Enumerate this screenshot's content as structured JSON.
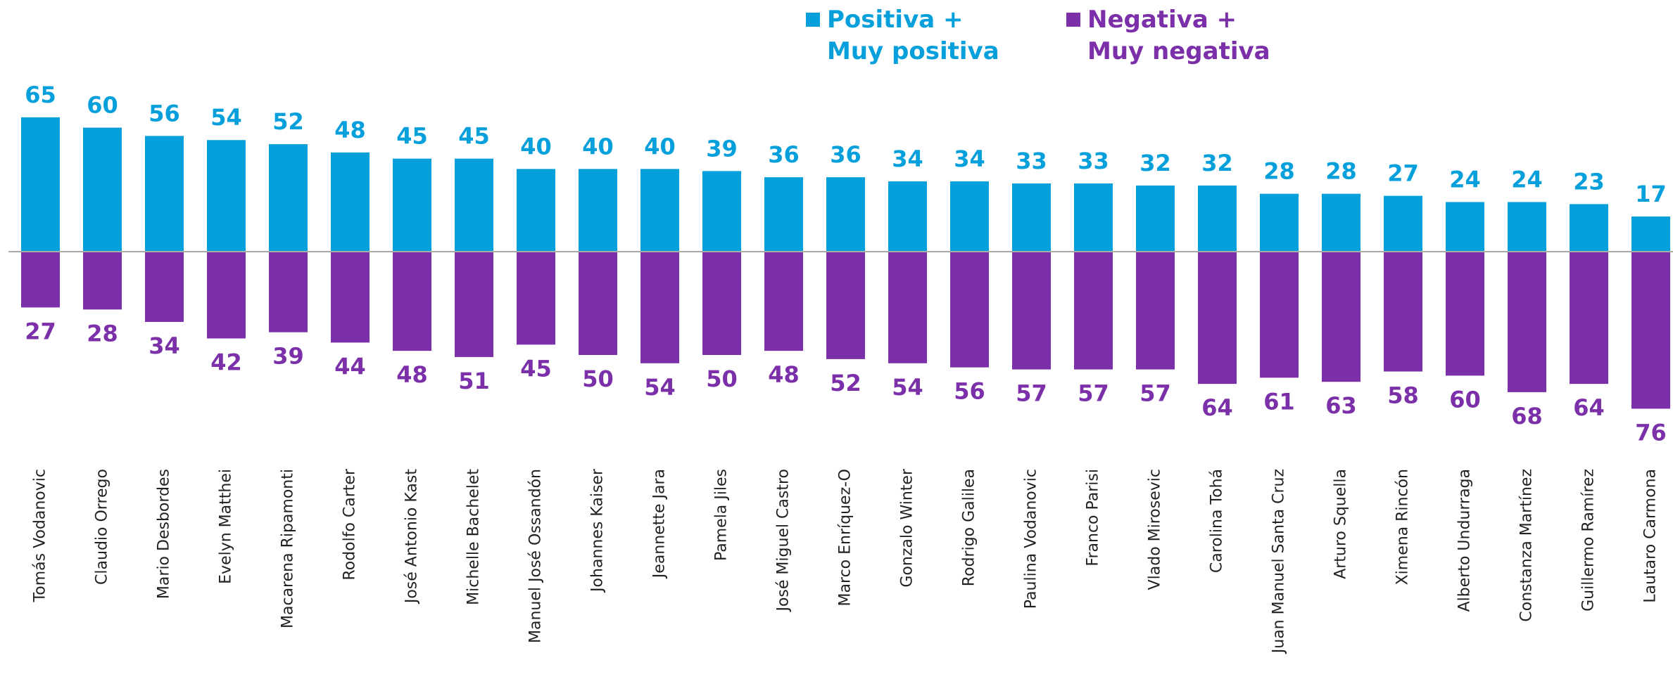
{
  "chart_data": {
    "type": "bar",
    "categories": [
      "Tomás Vodanovic",
      "Claudio Orrego",
      "Mario Desbordes",
      "Evelyn Matthei",
      "Macarena Ripamonti",
      "Rodolfo Carter",
      "José Antonio Kast",
      "Michelle Bachelet",
      "Manuel José Ossandón",
      "Johannes Kaiser",
      "Jeannette Jara",
      "Pamela Jiles",
      "José Miguel Castro",
      "Marco Enríquez-O",
      "Gonzalo Winter",
      "Rodrigo Galilea",
      "Paulina Vodanovic",
      "Franco Parisi",
      "Vlado Mirosevic",
      "Carolina Tohá",
      "Juan Manuel Santa Cruz",
      "Arturo Squella",
      "Ximena Rincón",
      "Alberto Undurraga",
      "Constanza Martínez",
      "Guillermo Ramírez",
      "Lautaro Carmona"
    ],
    "series": [
      {
        "name": "Positiva +\nMuy positiva",
        "color": "#05a0dc",
        "values": [
          65,
          60,
          56,
          54,
          52,
          48,
          45,
          45,
          40,
          40,
          40,
          39,
          36,
          36,
          34,
          34,
          33,
          33,
          32,
          32,
          28,
          28,
          27,
          24,
          24,
          23,
          17
        ]
      },
      {
        "name": "Negativa +\nMuy negativa",
        "color": "#7b2fa8",
        "values": [
          -27,
          -28,
          -34,
          -42,
          -39,
          -44,
          -48,
          -51,
          -45,
          -50,
          -54,
          -50,
          -48,
          -52,
          -54,
          -56,
          -57,
          -57,
          -57,
          -64,
          -61,
          -63,
          -58,
          -60,
          -68,
          -64,
          -76
        ],
        "value_labels": [
          "27",
          "28",
          "34",
          "42",
          "39",
          "44",
          "48",
          "51",
          "45",
          "50",
          "54",
          "50",
          "48",
          "52",
          "54",
          "56",
          "57",
          "57",
          "57",
          "64",
          "61",
          "63",
          "58",
          "60",
          "68",
          "64",
          "76"
        ]
      }
    ],
    "ylim": [
      -80,
      70
    ]
  }
}
